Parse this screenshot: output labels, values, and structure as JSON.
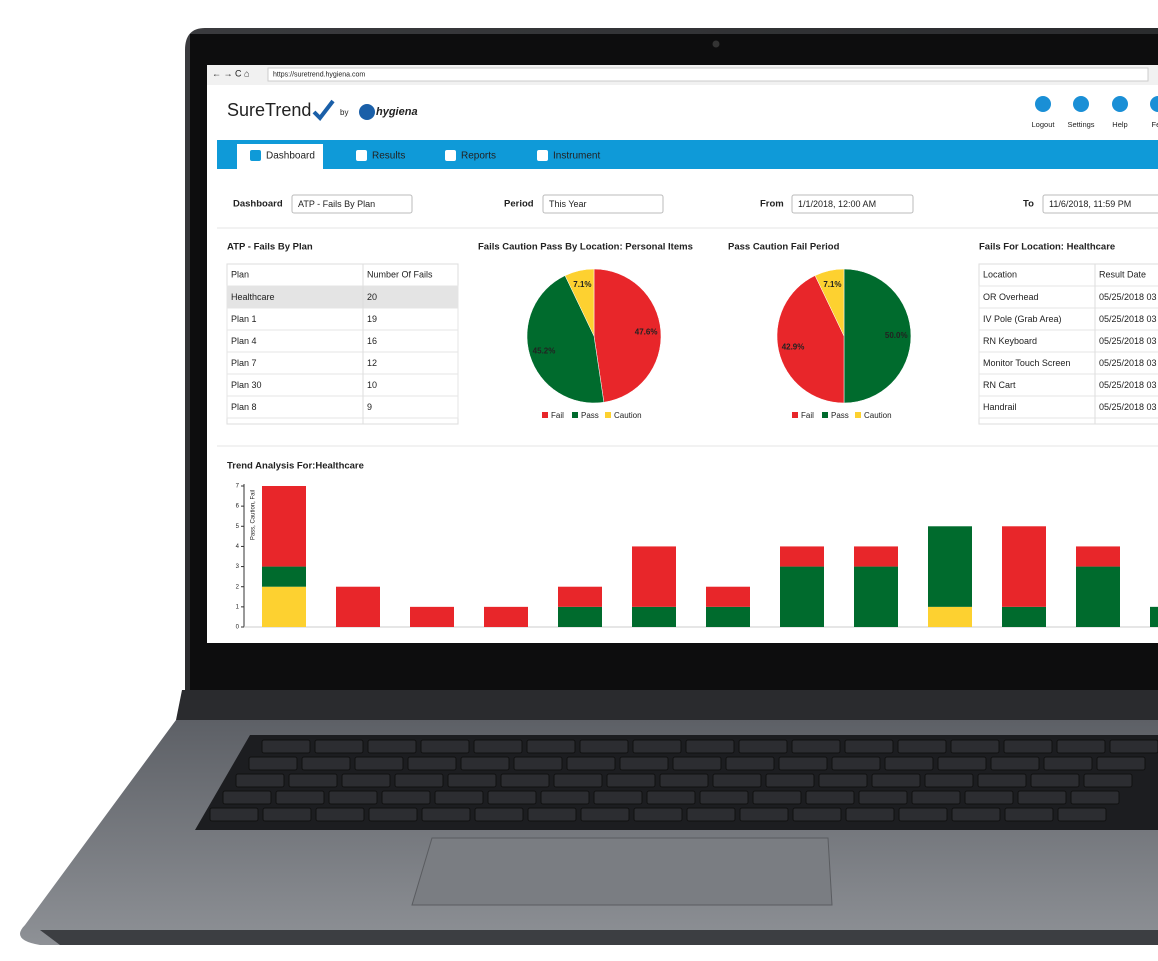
{
  "browser": {
    "url": "https://suretrend.hygiena.com"
  },
  "header": {
    "brand": "SureTrend",
    "by": "by",
    "partner": "hygiena",
    "actions": [
      "Logout",
      "Settings",
      "Help",
      "Fee"
    ]
  },
  "nav": [
    "Dashboard",
    "Results",
    "Reports",
    "Instrument"
  ],
  "filters": [
    {
      "label": "Dashboard",
      "value": "ATP - Fails By Plan"
    },
    {
      "label": "Period",
      "value": "This Year"
    },
    {
      "label": "From",
      "value": "1/1/2018, 12:00 AM"
    },
    {
      "label": "To",
      "value": "11/6/2018, 11:59 PM"
    }
  ],
  "plan_table": {
    "title": "ATP - Fails By Plan",
    "columns": [
      "Plan",
      "Number Of Fails"
    ],
    "rows": [
      [
        "Healthcare",
        20
      ],
      [
        "Plan 1",
        19
      ],
      [
        "Plan 4",
        16
      ],
      [
        "Plan 7",
        12
      ],
      [
        "Plan 30",
        10
      ],
      [
        "Plan 8",
        9
      ]
    ]
  },
  "location_table": {
    "title": "Fails For Location: Healthcare",
    "columns": [
      "Location",
      "Result Date"
    ],
    "rows": [
      [
        "OR Overhead",
        "05/25/2018 03"
      ],
      [
        "IV Pole (Grab Area)",
        "05/25/2018 03"
      ],
      [
        "RN Keyboard",
        "05/25/2018 03"
      ],
      [
        "Monitor Touch Screen",
        "05/25/2018 03"
      ],
      [
        "RN Cart",
        "05/25/2018 03"
      ],
      [
        "Handrail",
        "05/25/2018 03"
      ]
    ]
  },
  "chart_data": [
    {
      "type": "pie",
      "title": "Fails Caution Pass By Location: Personal Items",
      "categories": [
        "Fail",
        "Pass",
        "Caution"
      ],
      "values": [
        47.6,
        45.2,
        7.1
      ],
      "value_labels": [
        "47.6%",
        "45.2%",
        "7.1%"
      ],
      "colors": [
        "#e8262a",
        "#006b2d",
        "#fdd130"
      ]
    },
    {
      "type": "pie",
      "title": "Pass Caution Fail Period",
      "categories": [
        "Pass",
        "Fail",
        "Caution"
      ],
      "values": [
        50.0,
        42.9,
        7.1
      ],
      "value_labels": [
        "50.0%",
        "42.9%",
        "7.1%"
      ],
      "colors": [
        "#006b2d",
        "#e8262a",
        "#fdd130"
      ]
    },
    {
      "type": "bar",
      "stacked": true,
      "title": "Trend Analysis For:Healthcare",
      "ylabel": "Pass, Caution, Fail",
      "categories": [
        null,
        null,
        null,
        null,
        null,
        null,
        null,
        null,
        null,
        null,
        null,
        null,
        null
      ],
      "ylim": [
        0,
        7
      ],
      "yticks": [
        0,
        1,
        2,
        3,
        4,
        5,
        6,
        7
      ],
      "series": [
        {
          "color": "#fdd130",
          "values": [
            2,
            0,
            0,
            0,
            0,
            0,
            0,
            0,
            0,
            1,
            0,
            0,
            0
          ]
        },
        {
          "color": "#006b2d",
          "values": [
            1,
            0,
            0,
            0,
            1,
            1,
            1,
            3,
            3,
            4,
            1,
            3,
            1
          ]
        },
        {
          "color": "#e8262a",
          "values": [
            4,
            2,
            1,
            1,
            1,
            3,
            1,
            1,
            1,
            0,
            4,
            1,
            0
          ]
        }
      ]
    }
  ]
}
